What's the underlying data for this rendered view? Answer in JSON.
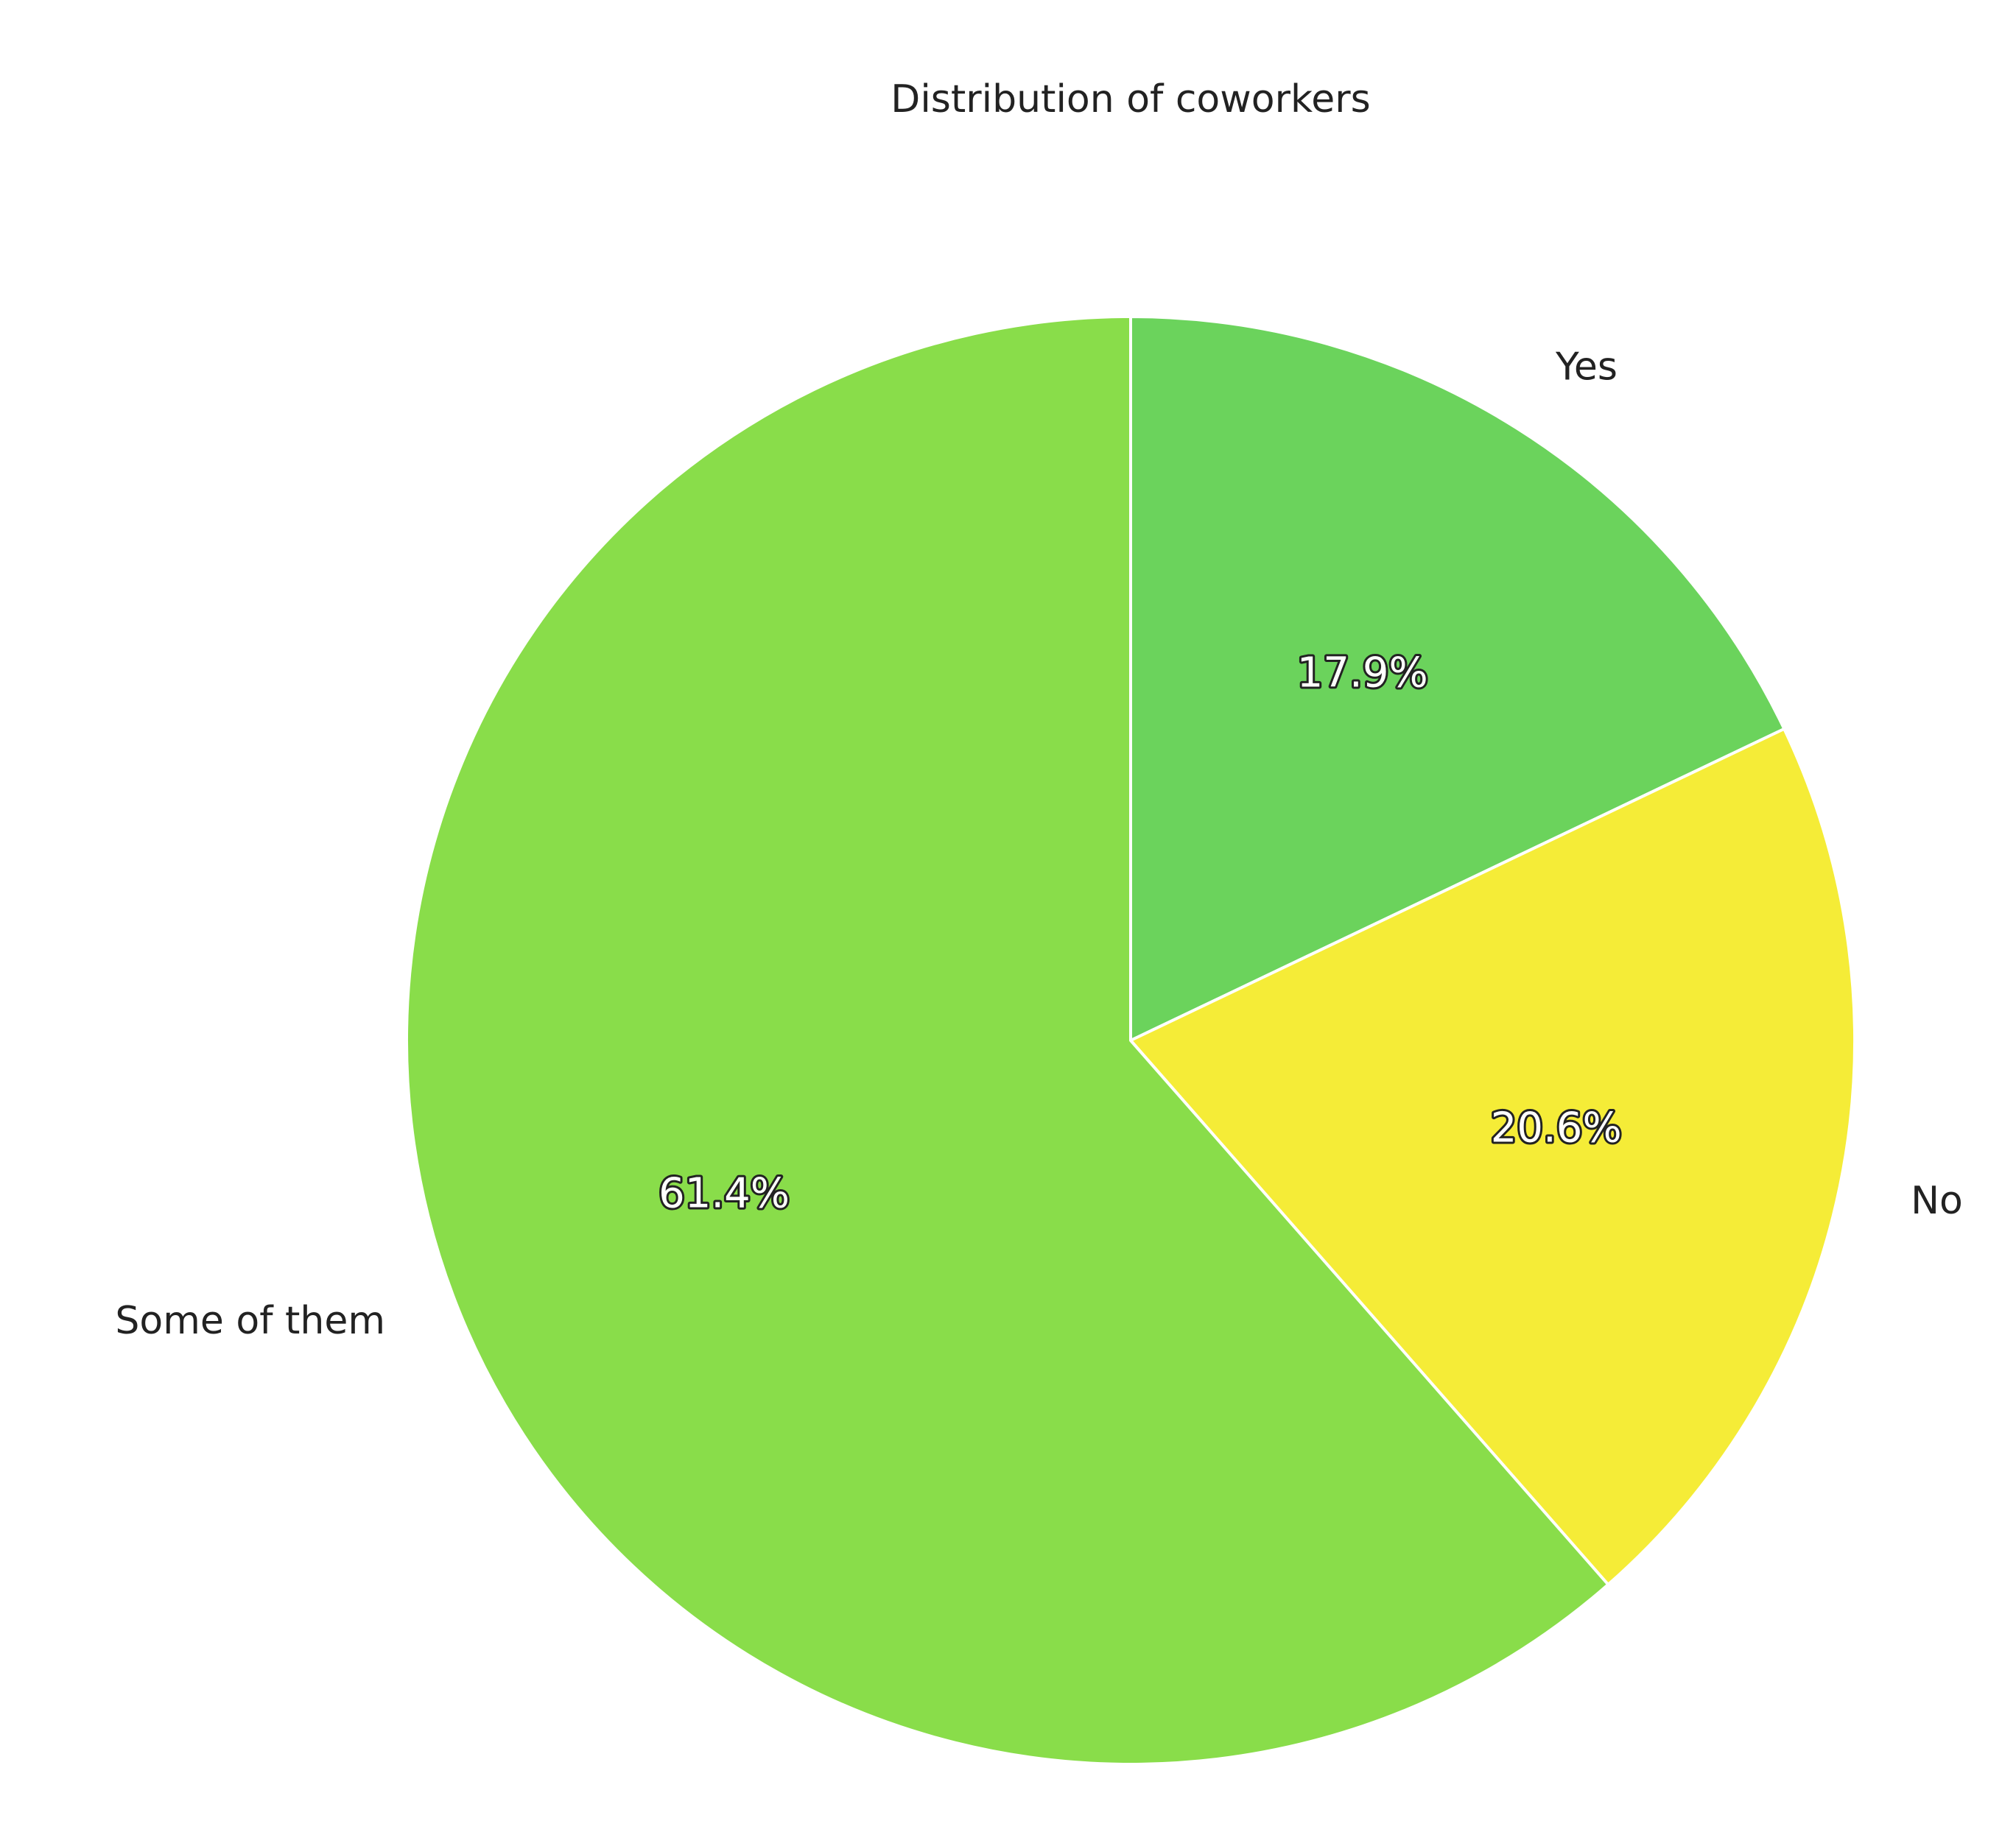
{
  "chart_data": {
    "type": "pie",
    "title": "Distribution of coworkers",
    "start_angle_deg": 90,
    "direction": "clockwise",
    "slices": [
      {
        "label": "Yes",
        "value": 17.9,
        "percent_label": "17.9%",
        "color": "#6bd35c"
      },
      {
        "label": "No",
        "value": 20.6,
        "percent_label": "20.6%",
        "color": "#f5ec37"
      },
      {
        "label": "Some of them",
        "value": 61.4,
        "percent_label": "61.4%",
        "color": "#89dd4a"
      }
    ]
  }
}
